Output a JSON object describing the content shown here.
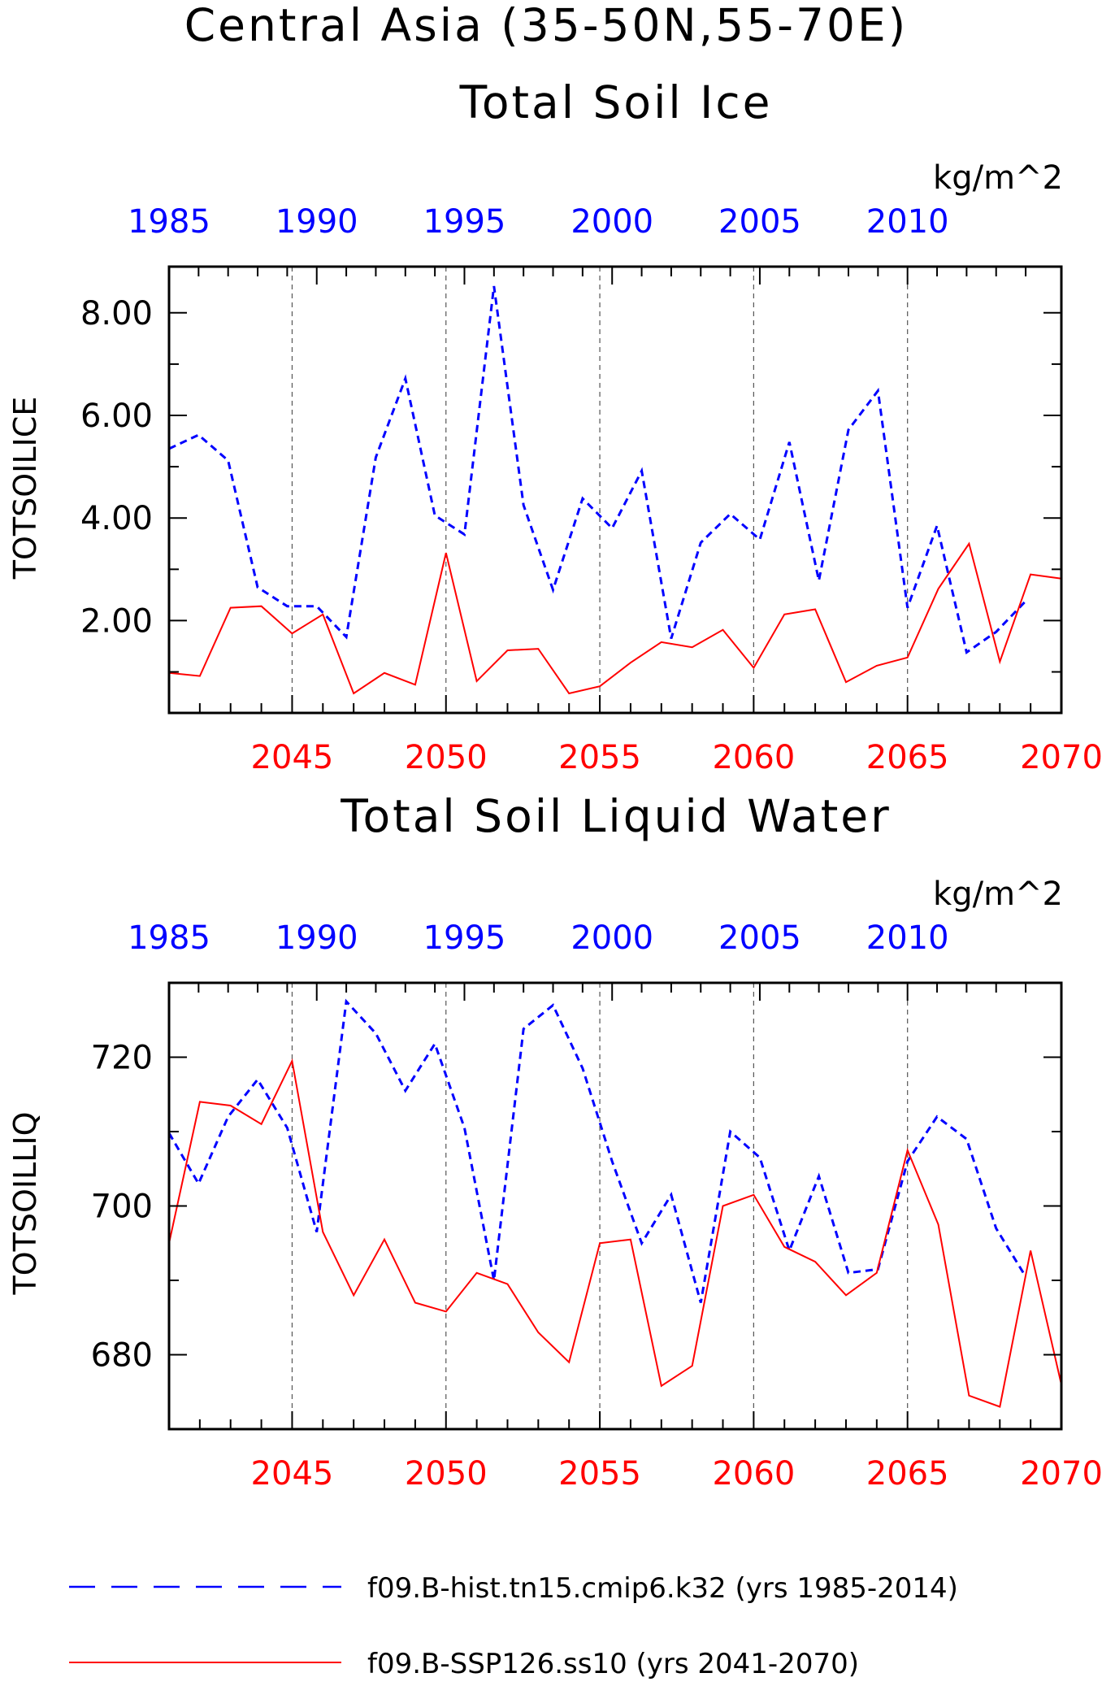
{
  "figure": {
    "title_line1": "Central Asia (35-50N,55-70E)"
  },
  "legend": {
    "hist_label": "f09.B-hist.tn15.cmip6.k32 (yrs 1985-2014)",
    "ssp_label": "f09.B-SSP126.ss10 (yrs 2041-2070)"
  },
  "colors": {
    "hist": "#0000ff",
    "ssp": "#ff0000"
  },
  "chart_data": [
    {
      "type": "line",
      "title": "Total Soil Ice",
      "units": "kg/m^2",
      "ylabel": "TOTSOILICE",
      "ylim": [
        0.2,
        8.9
      ],
      "yticks": [
        "2.00",
        "4.00",
        "6.00",
        "8.00"
      ],
      "x_top_ticks": [
        "1985",
        "1990",
        "1995",
        "2000",
        "2005",
        "2010"
      ],
      "x_bottom_ticks": [
        "2045",
        "2050",
        "2055",
        "2060",
        "2065",
        "2070"
      ],
      "x_top": [
        1985,
        1986,
        1987,
        1988,
        1989,
        1990,
        1991,
        1992,
        1993,
        1994,
        1995,
        1996,
        1997,
        1998,
        1999,
        2000,
        2001,
        2002,
        2003,
        2004,
        2005,
        2006,
        2007,
        2008,
        2009,
        2010,
        2011,
        2012,
        2013,
        2014
      ],
      "x_bottom": [
        2041,
        2042,
        2043,
        2044,
        2045,
        2046,
        2047,
        2048,
        2049,
        2050,
        2051,
        2052,
        2053,
        2054,
        2055,
        2056,
        2057,
        2058,
        2059,
        2060,
        2061,
        2062,
        2063,
        2064,
        2065,
        2066,
        2067,
        2068,
        2069,
        2070
      ],
      "series": [
        {
          "name": "f09.B-hist.tn15.cmip6.k32 (yrs 1985-2014)",
          "axis": "top",
          "style": "dashed",
          "values": [
            5.35,
            5.62,
            5.12,
            2.65,
            2.28,
            2.28,
            1.68,
            5.18,
            6.72,
            4.05,
            3.68,
            8.52,
            4.25,
            2.6,
            4.38,
            3.8,
            4.92,
            1.65,
            3.52,
            4.08,
            3.58,
            5.48,
            2.78,
            5.72,
            6.48,
            2.25,
            3.85,
            1.38,
            1.78,
            2.38
          ]
        },
        {
          "name": "f09.B-SSP126.ss10 (yrs 2041-2070)",
          "axis": "bottom",
          "style": "solid",
          "values": [
            0.98,
            0.92,
            2.25,
            2.28,
            1.75,
            2.12,
            0.58,
            0.98,
            0.75,
            3.32,
            0.82,
            1.42,
            1.45,
            0.58,
            0.72,
            1.18,
            1.58,
            1.48,
            1.82,
            1.08,
            2.12,
            2.22,
            0.8,
            1.12,
            1.28,
            2.62,
            3.5,
            1.2,
            2.9,
            2.82
          ]
        }
      ]
    },
    {
      "type": "line",
      "title": "Total Soil Liquid Water",
      "units": "kg/m^2",
      "ylabel": "TOTSOILLIQ",
      "ylim": [
        670,
        730
      ],
      "yticks": [
        "680",
        "700",
        "720"
      ],
      "x_top_ticks": [
        "1985",
        "1990",
        "1995",
        "2000",
        "2005",
        "2010"
      ],
      "x_bottom_ticks": [
        "2045",
        "2050",
        "2055",
        "2060",
        "2065",
        "2070"
      ],
      "x_top": [
        1985,
        1986,
        1987,
        1988,
        1989,
        1990,
        1991,
        1992,
        1993,
        1994,
        1995,
        1996,
        1997,
        1998,
        1999,
        2000,
        2001,
        2002,
        2003,
        2004,
        2005,
        2006,
        2007,
        2008,
        2009,
        2010,
        2011,
        2012,
        2013,
        2014
      ],
      "x_bottom": [
        2041,
        2042,
        2043,
        2044,
        2045,
        2046,
        2047,
        2048,
        2049,
        2050,
        2051,
        2052,
        2053,
        2054,
        2055,
        2056,
        2057,
        2058,
        2059,
        2060,
        2061,
        2062,
        2063,
        2064,
        2065,
        2066,
        2067,
        2068,
        2069,
        2070
      ],
      "series": [
        {
          "name": "f09.B-hist.tn15.cmip6.k32 (yrs 1985-2014)",
          "axis": "top",
          "style": "dashed",
          "values": [
            709.8,
            703.0,
            712.0,
            717.0,
            710.5,
            696.5,
            727.5,
            723.2,
            715.5,
            721.8,
            710.5,
            690.0,
            723.8,
            727.0,
            718.5,
            706.0,
            695.0,
            701.5,
            687.0,
            710.0,
            706.5,
            694.0,
            704.0,
            691.0,
            691.5,
            706.0,
            712.0,
            709.0,
            697.0,
            690.5
          ]
        },
        {
          "name": "f09.B-SSP126.ss10 (yrs 2041-2070)",
          "axis": "bottom",
          "style": "solid",
          "values": [
            695.0,
            714.0,
            713.5,
            711.0,
            719.5,
            696.5,
            688.0,
            695.5,
            687.0,
            685.8,
            691.0,
            689.5,
            683.0,
            679.0,
            695.0,
            695.5,
            675.8,
            678.5,
            700.0,
            701.5,
            694.5,
            692.5,
            688.0,
            691.0,
            707.5,
            697.5,
            674.5,
            673.0,
            694.0,
            676.0
          ]
        }
      ]
    }
  ]
}
